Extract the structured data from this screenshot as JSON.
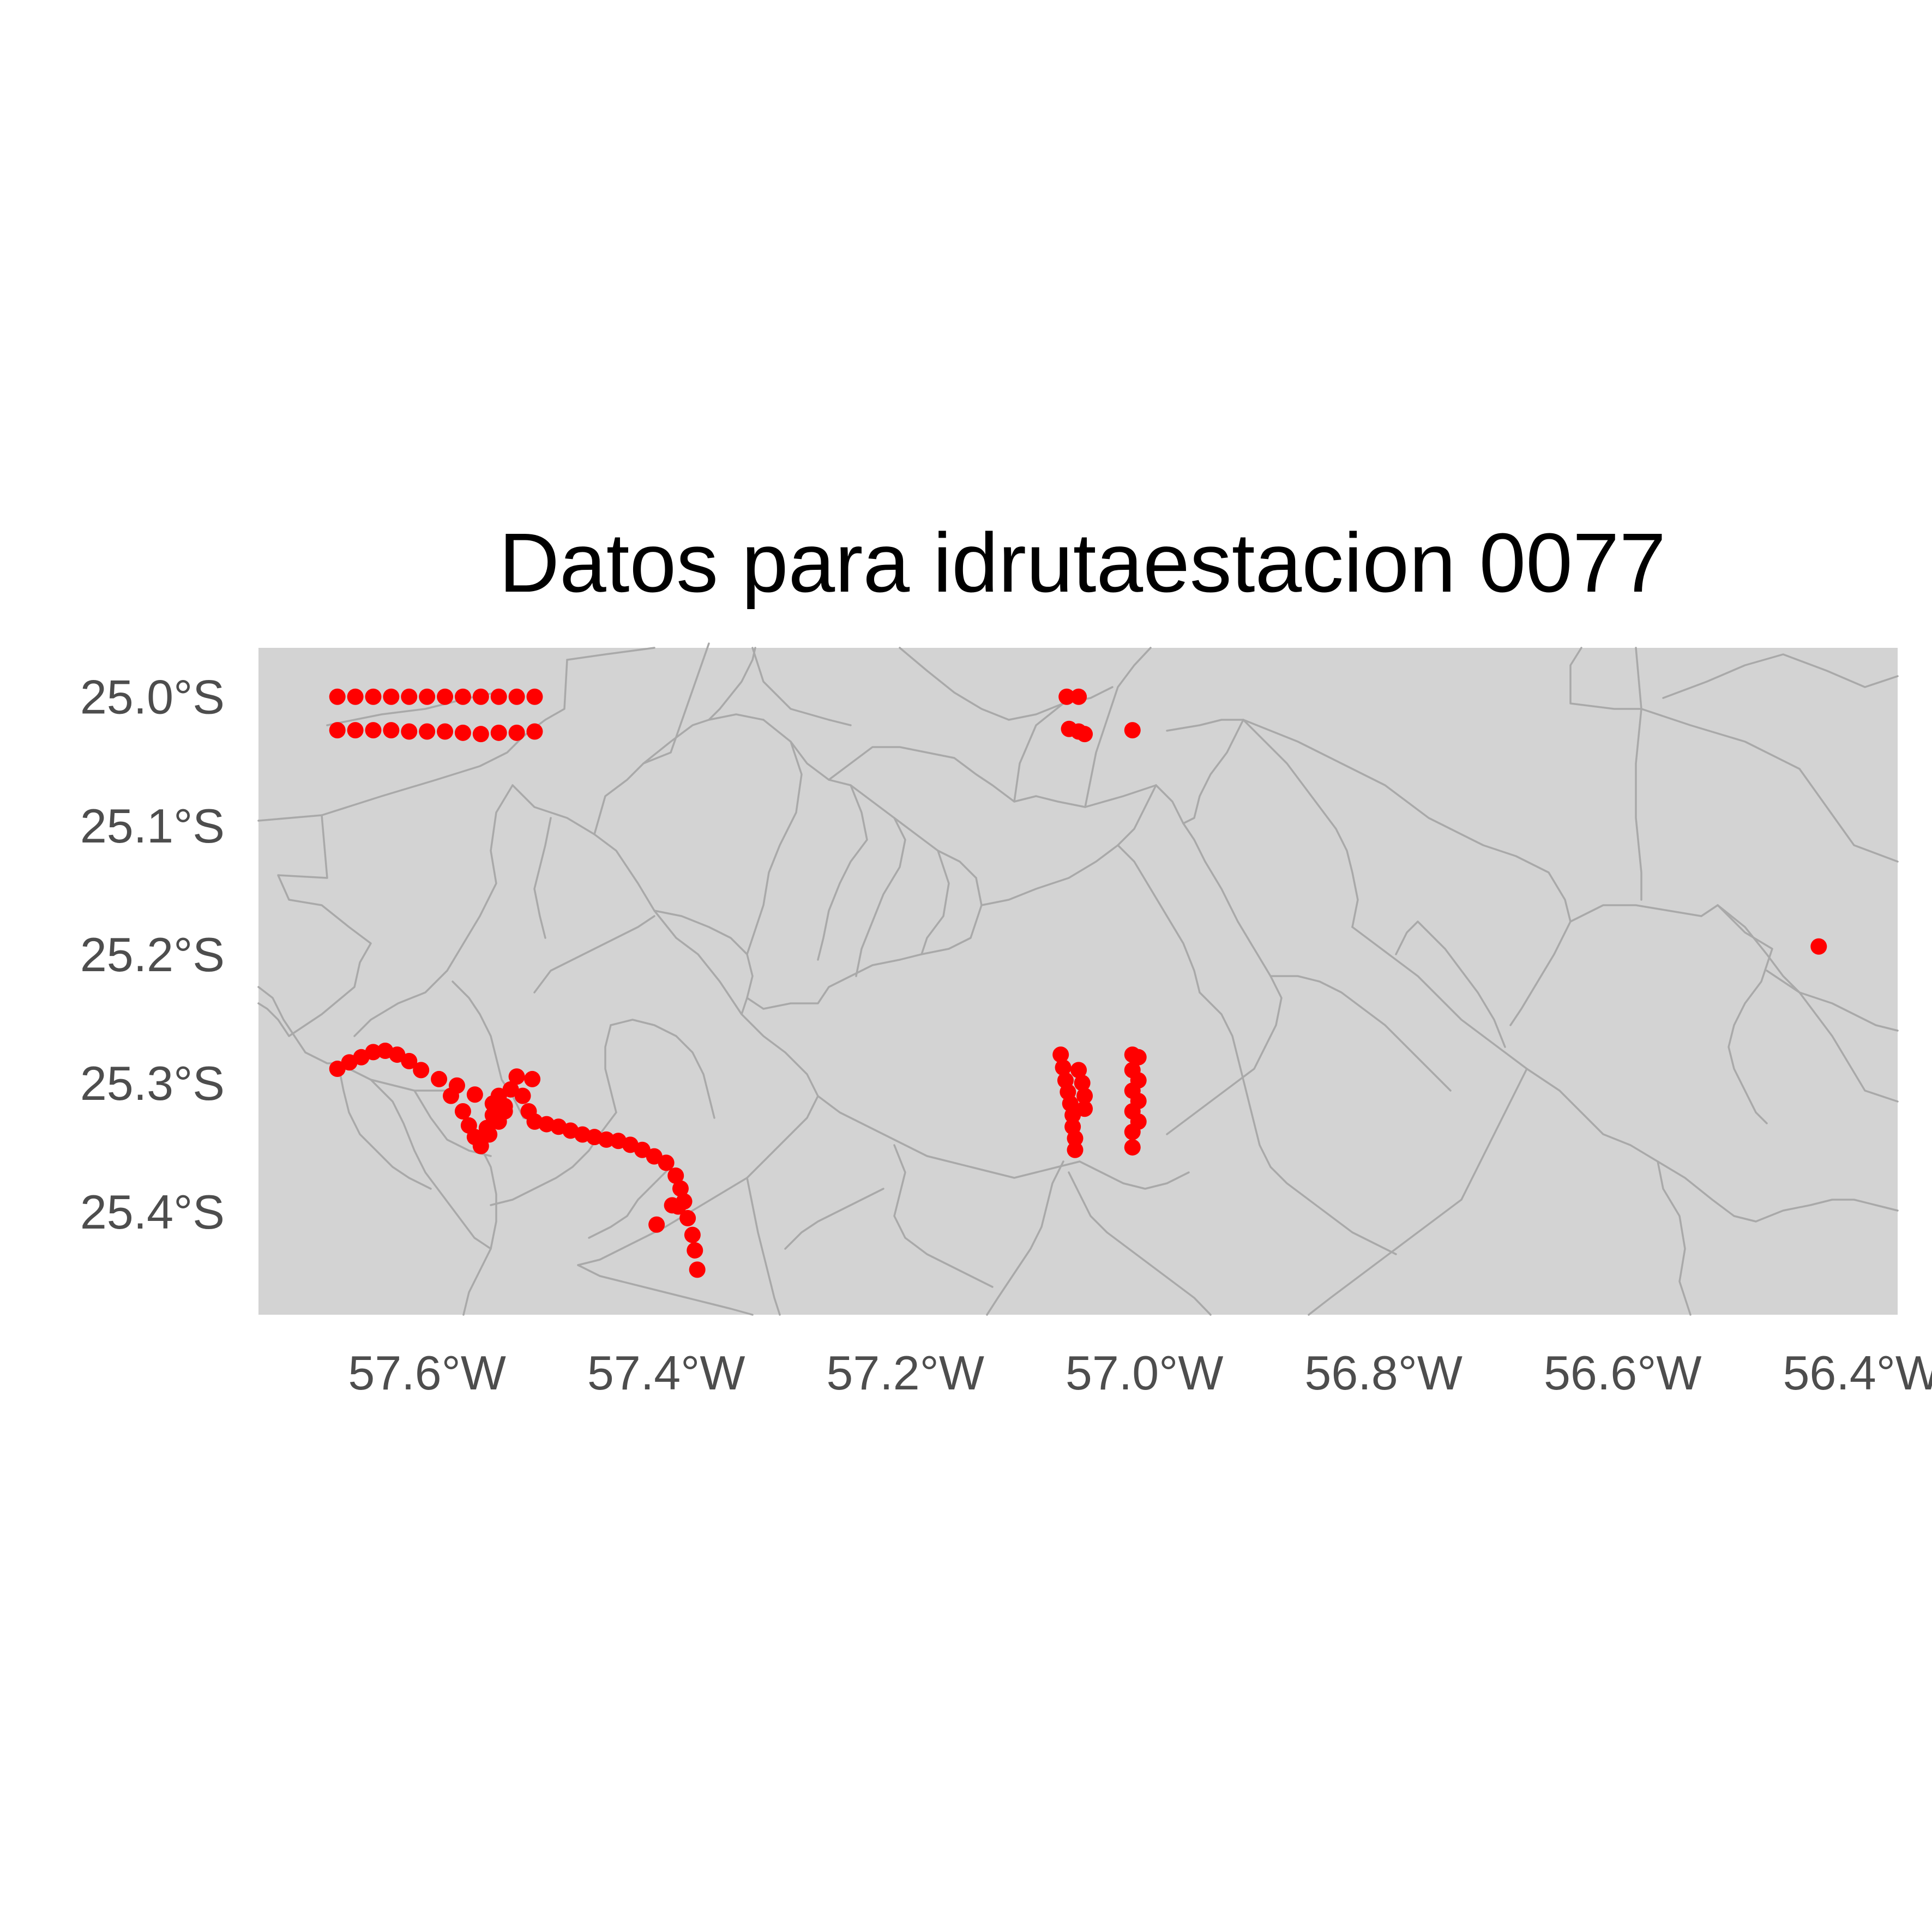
{
  "title": "Datos para idrutaestacion 0077",
  "colors": {
    "land": "#d3d3d3",
    "border": "#a9a9a9",
    "points": "#ff0000",
    "tick_text": "#4d4d4d",
    "gridline": "#ebebeb"
  },
  "chart_data": {
    "type": "scatter",
    "title": "Datos para idrutaestacion 0077",
    "xlabel": "",
    "ylabel": "",
    "xlim": [
      -57.741,
      -56.37
    ],
    "ylim": [
      -25.48,
      -24.962
    ],
    "x_ticks": [
      {
        "value": -57.6,
        "label": "57.6°W"
      },
      {
        "value": -57.4,
        "label": "57.4°W"
      },
      {
        "value": -57.2,
        "label": "57.2°W"
      },
      {
        "value": -57.0,
        "label": "57.0°W"
      },
      {
        "value": -56.8,
        "label": "56.8°W"
      },
      {
        "value": -56.6,
        "label": "56.6°W"
      },
      {
        "value": -56.4,
        "label": "56.4°W"
      }
    ],
    "y_ticks": [
      {
        "value": -25.0,
        "label": "25.0°S"
      },
      {
        "value": -25.1,
        "label": "25.1°S"
      },
      {
        "value": -25.2,
        "label": "25.2°S"
      },
      {
        "value": -25.3,
        "label": "25.3°S"
      },
      {
        "value": -25.4,
        "label": "25.4°S"
      }
    ],
    "grid": true,
    "legend": "none",
    "series": [
      {
        "color": "#ff0000",
        "points": [
          [
            -57.675,
            -25.0
          ],
          [
            -57.66,
            -25.0
          ],
          [
            -57.645,
            -25.0
          ],
          [
            -57.63,
            -25.0
          ],
          [
            -57.615,
            -25.0
          ],
          [
            -57.6,
            -25.0
          ],
          [
            -57.585,
            -25.0
          ],
          [
            -57.57,
            -25.0
          ],
          [
            -57.555,
            -25.0
          ],
          [
            -57.54,
            -25.0
          ],
          [
            -57.525,
            -25.0
          ],
          [
            -57.51,
            -25.0
          ],
          [
            -57.675,
            -25.026
          ],
          [
            -57.66,
            -25.026
          ],
          [
            -57.645,
            -25.026
          ],
          [
            -57.63,
            -25.026
          ],
          [
            -57.615,
            -25.027
          ],
          [
            -57.6,
            -25.027
          ],
          [
            -57.585,
            -25.027
          ],
          [
            -57.57,
            -25.028
          ],
          [
            -57.555,
            -25.029
          ],
          [
            -57.54,
            -25.028
          ],
          [
            -57.525,
            -25.028
          ],
          [
            -57.51,
            -25.027
          ],
          [
            -57.065,
            -25.0
          ],
          [
            -57.055,
            -25.0
          ],
          [
            -57.063,
            -25.025
          ],
          [
            -57.055,
            -25.027
          ],
          [
            -57.05,
            -25.029
          ],
          [
            -57.01,
            -25.026
          ],
          [
            -56.436,
            -25.194
          ],
          [
            -57.675,
            -25.289
          ],
          [
            -57.665,
            -25.284
          ],
          [
            -57.655,
            -25.28
          ],
          [
            -57.645,
            -25.276
          ],
          [
            -57.635,
            -25.275
          ],
          [
            -57.625,
            -25.278
          ],
          [
            -57.615,
            -25.283
          ],
          [
            -57.605,
            -25.29
          ],
          [
            -57.59,
            -25.297
          ],
          [
            -57.575,
            -25.302
          ],
          [
            -57.56,
            -25.309
          ],
          [
            -57.545,
            -25.316
          ],
          [
            -57.535,
            -25.322
          ],
          [
            -57.58,
            -25.31
          ],
          [
            -57.57,
            -25.322
          ],
          [
            -57.565,
            -25.333
          ],
          [
            -57.56,
            -25.342
          ],
          [
            -57.555,
            -25.349
          ],
          [
            -57.548,
            -25.34
          ],
          [
            -57.54,
            -25.33
          ],
          [
            -57.535,
            -25.318
          ],
          [
            -57.53,
            -25.305
          ],
          [
            -57.525,
            -25.295
          ],
          [
            -57.52,
            -25.31
          ],
          [
            -57.515,
            -25.322
          ],
          [
            -57.512,
            -25.297
          ],
          [
            -57.545,
            -25.325
          ],
          [
            -57.54,
            -25.31
          ],
          [
            -57.55,
            -25.335
          ],
          [
            -57.51,
            -25.33
          ],
          [
            -57.5,
            -25.332
          ],
          [
            -57.49,
            -25.334
          ],
          [
            -57.48,
            -25.337
          ],
          [
            -57.47,
            -25.34
          ],
          [
            -57.46,
            -25.342
          ],
          [
            -57.45,
            -25.344
          ],
          [
            -57.44,
            -25.345
          ],
          [
            -57.43,
            -25.348
          ],
          [
            -57.42,
            -25.352
          ],
          [
            -57.41,
            -25.357
          ],
          [
            -57.4,
            -25.362
          ],
          [
            -57.392,
            -25.372
          ],
          [
            -57.388,
            -25.382
          ],
          [
            -57.385,
            -25.392
          ],
          [
            -57.39,
            -25.396
          ],
          [
            -57.382,
            -25.405
          ],
          [
            -57.378,
            -25.418
          ],
          [
            -57.376,
            -25.43
          ],
          [
            -57.374,
            -25.445
          ],
          [
            -57.395,
            -25.395
          ],
          [
            -57.408,
            -25.41
          ],
          [
            -57.07,
            -25.278
          ],
          [
            -57.068,
            -25.288
          ],
          [
            -57.066,
            -25.298
          ],
          [
            -57.064,
            -25.307
          ],
          [
            -57.062,
            -25.316
          ],
          [
            -57.06,
            -25.325
          ],
          [
            -57.06,
            -25.334
          ],
          [
            -57.058,
            -25.343
          ],
          [
            -57.058,
            -25.352
          ],
          [
            -57.055,
            -25.29
          ],
          [
            -57.052,
            -25.3
          ],
          [
            -57.05,
            -25.31
          ],
          [
            -57.05,
            -25.32
          ],
          [
            -57.01,
            -25.278
          ],
          [
            -57.005,
            -25.28
          ],
          [
            -57.01,
            -25.29
          ],
          [
            -57.005,
            -25.298
          ],
          [
            -57.01,
            -25.306
          ],
          [
            -57.005,
            -25.314
          ],
          [
            -57.01,
            -25.322
          ],
          [
            -57.005,
            -25.33
          ],
          [
            -57.01,
            -25.338
          ],
          [
            -57.01,
            -25.35
          ]
        ]
      }
    ]
  }
}
